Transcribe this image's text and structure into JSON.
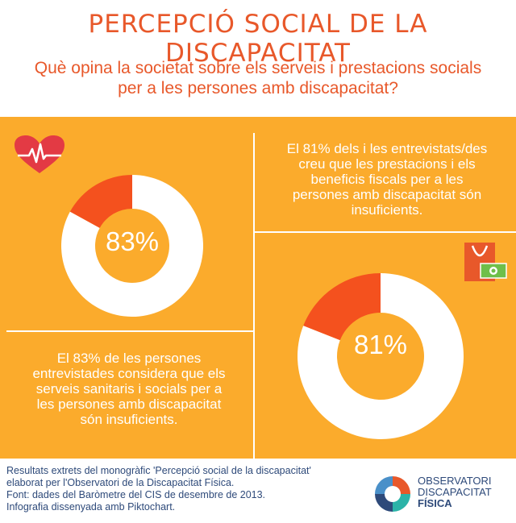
{
  "title": "PERCEPCIÓ SOCIAL DE LA DISCAPACITAT",
  "subtitle_lines": [
    "Què opina la societat sobre els serveis i prestacions socials",
    "per a les persones amb discapacitat?"
  ],
  "colors": {
    "background": "#fbab2c",
    "accent": "#e8582a",
    "highlight": "#f4511e",
    "donut_rest": "#ffffff",
    "footer_text": "#2e4a7a"
  },
  "icons": [
    "heart-pulse-icon",
    "shopping-bag-money-icon",
    "observatori-logo-icon"
  ],
  "chart_data": [
    {
      "type": "pie",
      "title": "",
      "values": [
        83,
        17
      ],
      "center_label": "83%",
      "description_lines": [
        "El 83% de les persones",
        "entrevistades considera que els",
        "serveis sanitaris i socials per a",
        "les persones amb discapacitat",
        "són insuficients."
      ]
    },
    {
      "type": "pie",
      "title": "",
      "values": [
        81,
        19
      ],
      "center_label": "81%",
      "description_lines": [
        "El 81% dels i les entrevistats/des",
        "creu que les prestacions i els",
        "beneficis fiscals per a les",
        "persones amb discapacitat són",
        "insuficients."
      ]
    }
  ],
  "footer_lines": [
    "Resultats extrets del monogràfic 'Percepció social de la discapacitat'",
    "elaborat per l'Observatori de la Discapacitat Física.",
    "Font: dades del Baròmetre del CIS de desembre de 2013.",
    "Infografia dissenyada amb Piktochart."
  ],
  "logo": {
    "line1": "OBSERVATORI",
    "line2": "DISCAPACITAT",
    "line3": "FÍSICA"
  }
}
